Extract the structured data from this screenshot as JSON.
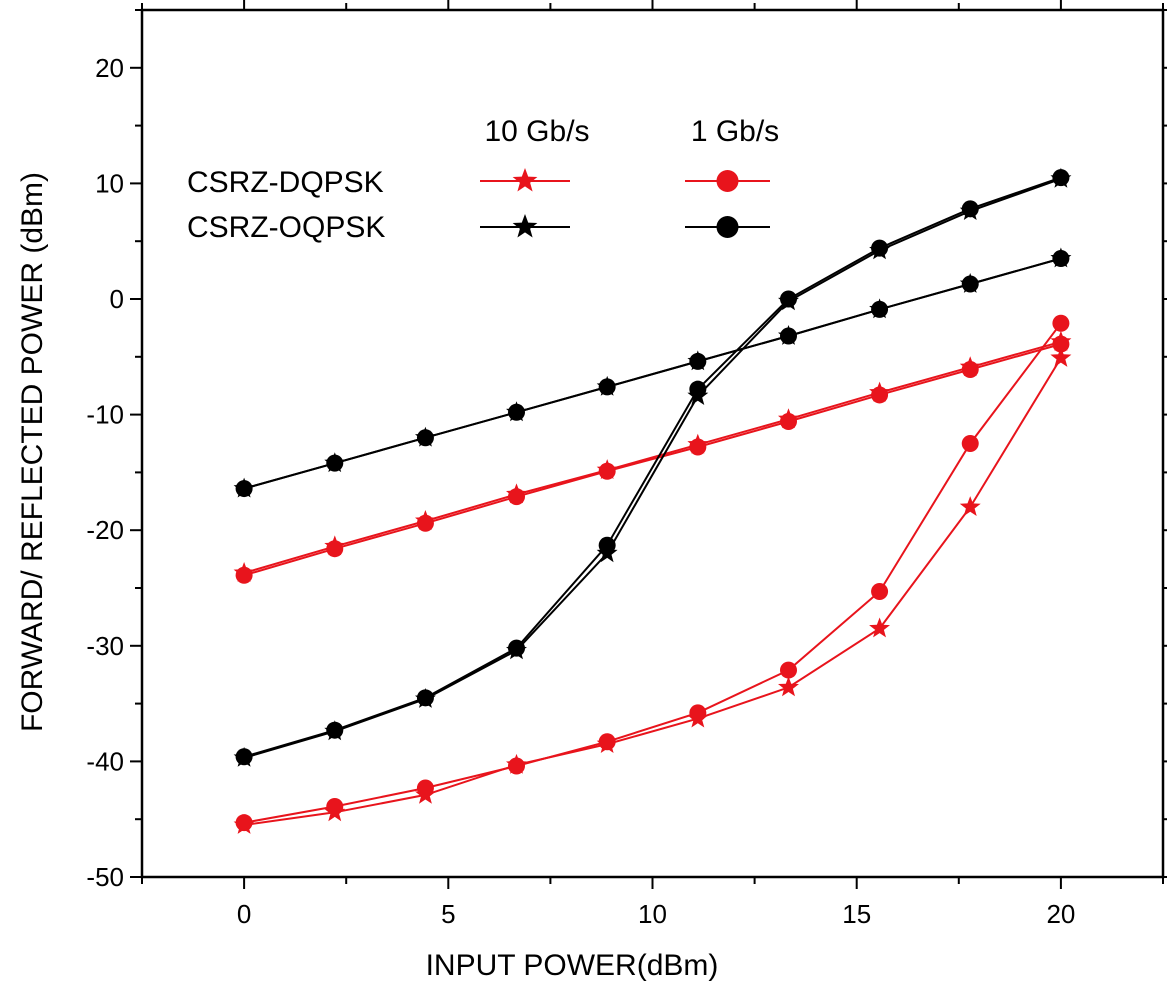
{
  "chart_data": {
    "type": "line",
    "title": "",
    "xlabel": "INPUT POWER(dBm)",
    "ylabel": "FORWARD/ REFLECTED POWER (dBm)",
    "xlim": [
      -2.5,
      22.5
    ],
    "ylim": [
      -50,
      25
    ],
    "xticks": [
      0,
      5,
      10,
      15,
      20
    ],
    "yticks": [
      -50,
      -40,
      -30,
      -20,
      -10,
      0,
      10,
      20
    ],
    "grid": false,
    "legend": {
      "placement": "top-left",
      "col_headers": [
        "10 Gb/s",
        "1 Gb/s"
      ],
      "rows": [
        "CSRZ-DQPSK",
        "CSRZ-OQPSK"
      ]
    },
    "x": [
      0,
      2.22,
      4.44,
      6.67,
      8.89,
      11.11,
      13.33,
      15.56,
      17.78,
      20
    ],
    "series": [
      {
        "name": "CSRZ-DQPSK 10 Gb/s forward",
        "color": "#e8141c",
        "marker": "star",
        "values": [
          -23.7,
          -21.4,
          -19.2,
          -16.9,
          -14.8,
          -12.6,
          -10.4,
          -8.1,
          -5.9,
          -3.7
        ]
      },
      {
        "name": "CSRZ-DQPSK 1 Gb/s forward",
        "color": "#e8141c",
        "marker": "circle",
        "values": [
          -23.9,
          -21.6,
          -19.4,
          -17.1,
          -14.9,
          -12.8,
          -10.6,
          -8.3,
          -6.1,
          -3.9
        ]
      },
      {
        "name": "CSRZ-DQPSK 10 Gb/s reflected",
        "color": "#e8141c",
        "marker": "star",
        "values": [
          -45.5,
          -44.4,
          -42.9,
          -40.3,
          -38.5,
          -36.3,
          -33.6,
          -28.5,
          -18.0,
          -5.1
        ]
      },
      {
        "name": "CSRZ-DQPSK 1 Gb/s reflected",
        "color": "#e8141c",
        "marker": "circle",
        "values": [
          -45.3,
          -43.9,
          -42.3,
          -40.4,
          -38.3,
          -35.8,
          -32.1,
          -25.3,
          -12.5,
          -2.1
        ]
      },
      {
        "name": "CSRZ-OQPSK 10 Gb/s forward",
        "color": "#000000",
        "marker": "star",
        "values": [
          -16.4,
          -14.2,
          -12.0,
          -9.8,
          -7.6,
          -5.4,
          -3.2,
          -0.9,
          1.3,
          3.5
        ]
      },
      {
        "name": "CSRZ-OQPSK 1 Gb/s forward",
        "color": "#000000",
        "marker": "circle",
        "values": [
          -16.4,
          -14.2,
          -12.0,
          -9.8,
          -7.6,
          -5.4,
          -3.2,
          -0.9,
          1.3,
          3.5
        ]
      },
      {
        "name": "CSRZ-OQPSK 10 Gb/s reflected",
        "color": "#000000",
        "marker": "star",
        "values": [
          -39.7,
          -37.4,
          -34.6,
          -30.4,
          -22.0,
          -8.4,
          -0.2,
          4.2,
          7.6,
          10.4
        ]
      },
      {
        "name": "CSRZ-OQPSK 1 Gb/s reflected",
        "color": "#000000",
        "marker": "circle",
        "values": [
          -39.6,
          -37.3,
          -34.5,
          -30.2,
          -21.3,
          -7.8,
          0.0,
          4.4,
          7.8,
          10.5
        ]
      }
    ]
  }
}
